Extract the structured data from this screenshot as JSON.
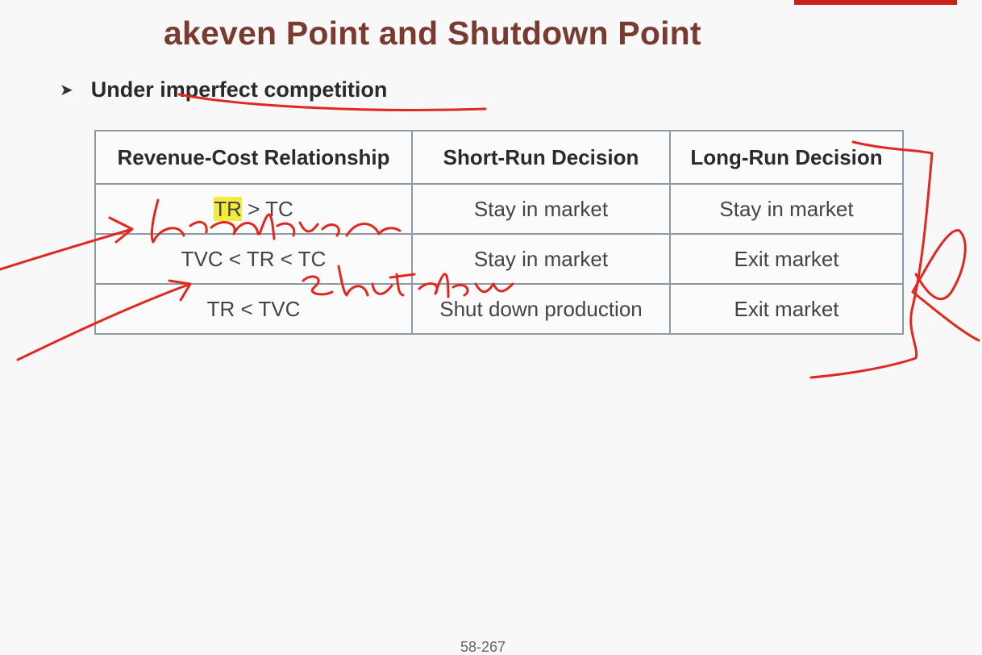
{
  "slide": {
    "title": "akeven Point and Shutdown Point",
    "bullet_text": "Under imperfect competition",
    "page_number": "58-267"
  },
  "table": {
    "headers": [
      "Revenue-Cost Relationship",
      "Short-Run Decision",
      "Long-Run Decision"
    ],
    "rows": [
      {
        "relationship_highlight": "TR",
        "relationship_rest": " > TC",
        "short_run": "Stay in market",
        "long_run": "Stay in market"
      },
      {
        "relationship": "TVC < TR < TC",
        "short_run": "Stay in market",
        "long_run": "Exit market"
      },
      {
        "relationship": "TR < TVC",
        "short_run": "Shut down production",
        "long_run": "Exit market"
      }
    ]
  },
  "colors": {
    "title": "#7b3a30",
    "ink": "#e0281f",
    "highlight": "#f3ec3a",
    "table_border": "#8c9aa6"
  }
}
